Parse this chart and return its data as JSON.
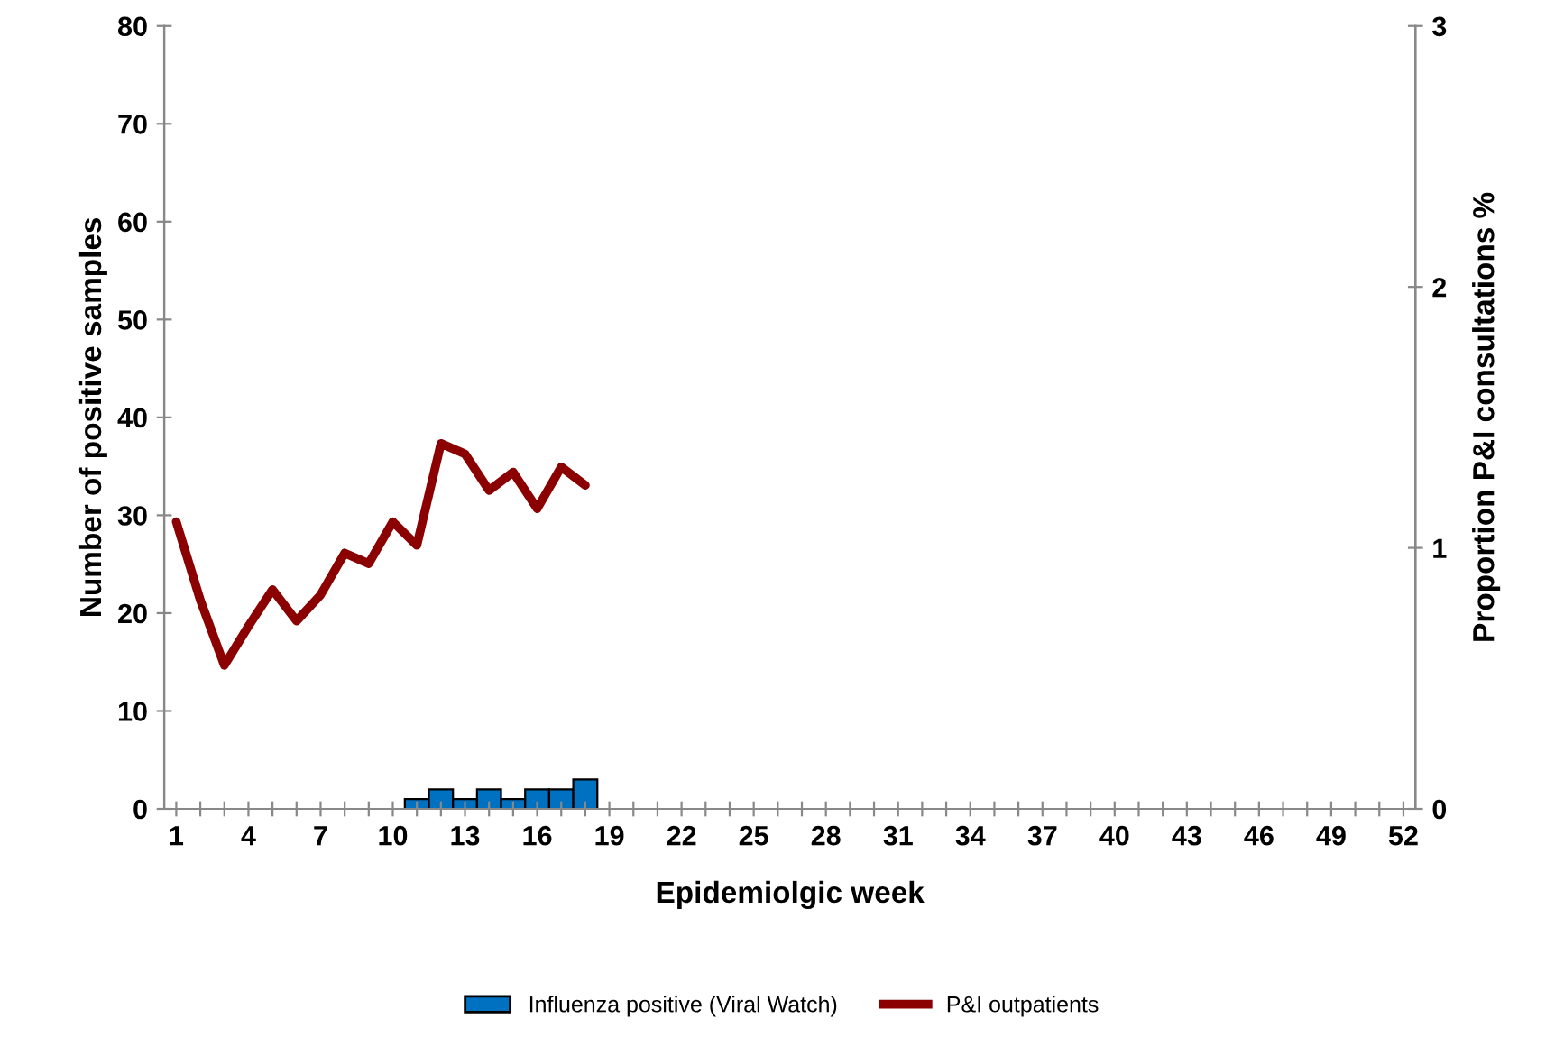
{
  "chart_data": {
    "type": "bar",
    "xlabel": "Epidemiolgic week",
    "ylabel": "Number of positive samples",
    "y2label": "Proportion P&I consultations %",
    "categories": [
      "1",
      null,
      null,
      "4",
      null,
      null,
      "7",
      null,
      null,
      "10",
      null,
      null,
      "13",
      null,
      null,
      "16",
      null,
      null,
      "19",
      null,
      null,
      "22",
      null,
      null,
      "25",
      null,
      null,
      "28",
      null,
      null,
      "31",
      null,
      null,
      "34",
      null,
      null,
      "37",
      null,
      null,
      "40",
      null,
      null,
      "43",
      null,
      null,
      "46",
      null,
      null,
      "49",
      null,
      null,
      "52"
    ],
    "series": [
      {
        "name": "Influenza positive (Viral Watch)",
        "color": "#0070c0",
        "values": [
          null,
          null,
          null,
          null,
          null,
          null,
          null,
          null,
          null,
          null,
          1,
          2,
          1,
          2,
          1,
          2,
          2,
          3,
          null,
          null,
          null,
          null,
          null,
          null,
          null,
          null,
          null,
          null,
          null,
          null,
          null,
          null,
          null,
          null,
          null,
          null,
          null,
          null,
          null,
          null,
          null,
          null,
          null,
          null,
          null,
          null,
          null,
          null,
          null,
          null,
          null,
          null
        ]
      },
      {
        "name": "P&I outpatients",
        "type": "line",
        "axis": "y2",
        "color": "#8b0000",
        "values": [
          1.1,
          0.8,
          0.55,
          0.7,
          0.84,
          0.72,
          0.82,
          0.98,
          0.94,
          1.1,
          1.01,
          1.4,
          1.36,
          1.22,
          1.29,
          1.15,
          1.31,
          1.24,
          null,
          null,
          null,
          null,
          null,
          null,
          null,
          null,
          null,
          null,
          null,
          null,
          null,
          null,
          null,
          null,
          null,
          null,
          null,
          null,
          null,
          null,
          null,
          null,
          null,
          null,
          null,
          null,
          null,
          null,
          null,
          null,
          null,
          null
        ]
      }
    ],
    "ylim": [
      0,
      80
    ],
    "yticks": [
      0,
      10,
      20,
      30,
      40,
      50,
      60,
      70,
      80
    ],
    "y2lim": [
      0,
      3
    ],
    "y2ticks": [
      0,
      1,
      2,
      3
    ],
    "legend": "bottom",
    "grid": false,
    "marker": "none",
    "line_style": "solid"
  }
}
